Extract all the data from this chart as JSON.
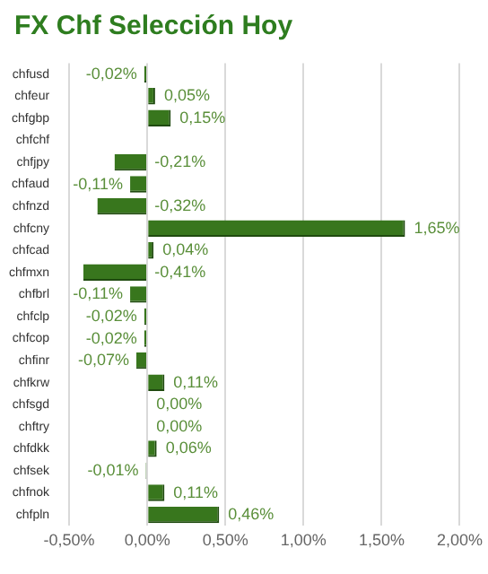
{
  "chart_data": {
    "type": "bar",
    "orientation": "horizontal",
    "title": "FX Chf Selección Hoy",
    "categories": [
      "chfusd",
      "chfeur",
      "chfgbp",
      "chfchf",
      "chfjpy",
      "chfaud",
      "chfnzd",
      "chfcny",
      "chfcad",
      "chfmxn",
      "chfbrl",
      "chfclp",
      "chfcop",
      "chfinr",
      "chfkrw",
      "chfsgd",
      "chftry",
      "chfdkk",
      "chfsek",
      "chfnok",
      "chfpln"
    ],
    "values": [
      -0.02,
      0.05,
      0.15,
      null,
      -0.21,
      -0.11,
      -0.32,
      1.65,
      0.04,
      -0.41,
      -0.11,
      -0.02,
      -0.02,
      -0.07,
      0.11,
      0.0,
      0.0,
      0.06,
      -0.01,
      0.11,
      0.46
    ],
    "value_labels": [
      "-0,02%",
      "0,05%",
      "0,15%",
      null,
      "-0,21%",
      "-0,11%",
      "-0,32%",
      "1,65%",
      "0,04%",
      "-0,41%",
      "-0,11%",
      "-0,02%",
      "-0,02%",
      "-0,07%",
      "0,11%",
      "0,00%",
      "0,00%",
      "0,06%",
      "-0,01%",
      "0,11%",
      "0,46%"
    ],
    "color": "#38761d",
    "xlim": [
      -0.5,
      2.0
    ],
    "xticks": [
      {
        "value": -0.5,
        "label": "-0,50%"
      },
      {
        "value": 0,
        "label": "0,00%"
      },
      {
        "value": 0.5,
        "label": "0,50%"
      },
      {
        "value": 1.0,
        "label": "1,00%"
      },
      {
        "value": 1.5,
        "label": "1,50%"
      },
      {
        "value": 2.0,
        "label": "2,00%"
      }
    ],
    "grid": "x",
    "legend": false
  }
}
